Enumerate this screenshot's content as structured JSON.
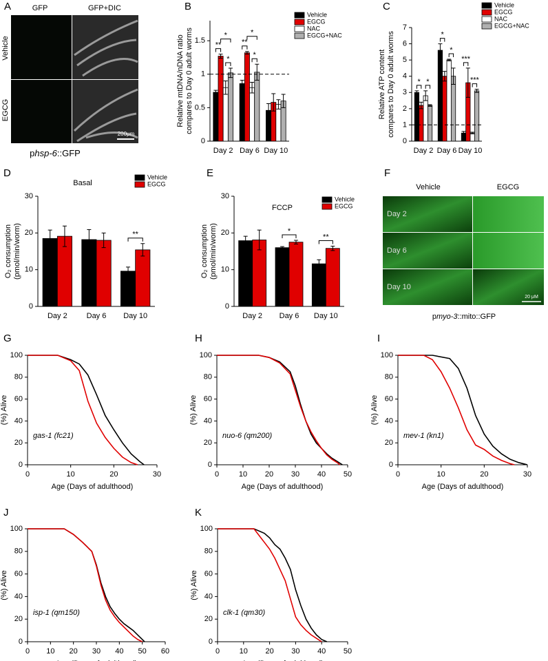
{
  "images": [
    {
      "panel": "A",
      "columns": [
        "GFP",
        "GFP+DIC"
      ],
      "rows": [
        "Vehicle",
        "EGCG"
      ],
      "scale_bar": "200μm",
      "caption": [
        "p",
        "hsp-6",
        "::GFP"
      ]
    },
    {
      "panel": "F",
      "columns": [
        "Vehicle",
        "EGCG"
      ],
      "rows": [
        "Day 2",
        "Day 6",
        "Day 10"
      ],
      "scale_bar": "20 μM",
      "caption": [
        "p",
        "myo-3",
        "::mito::GFP"
      ]
    }
  ],
  "chart_data": [
    {
      "type": "bar",
      "panel": "B",
      "ylabel": [
        "Relative mtDNA/nDNA ratio",
        "compares to Day 0 adult worms"
      ],
      "categories": [
        "Day 2",
        "Day 6",
        "Day 10"
      ],
      "ylim": [
        0,
        1.8
      ],
      "yticks": [
        0,
        0.5,
        1,
        1.5
      ],
      "refline": 1,
      "series": [
        {
          "name": "Vehicle",
          "color": "#000000",
          "values": [
            0.73,
            0.86,
            0.46
          ],
          "errors": [
            0.03,
            0.05,
            0.1
          ]
        },
        {
          "name": "EGCG",
          "color": "#e00000",
          "values": [
            1.27,
            1.32,
            0.58
          ],
          "errors": [
            0.03,
            0.02,
            0.13
          ]
        },
        {
          "name": "NAC",
          "color": "#ffffff",
          "values": [
            0.8,
            0.8,
            0.55
          ],
          "errors": [
            0.1,
            0.08,
            0.07
          ]
        },
        {
          "name": "EGCG+NAC",
          "color": "#b0b0b0",
          "values": [
            1.02,
            1.03,
            0.6
          ],
          "errors": [
            0.07,
            0.12,
            0.1
          ]
        }
      ],
      "annotations": [
        "**",
        "*",
        "*",
        "**",
        "*",
        "*"
      ]
    },
    {
      "type": "bar",
      "panel": "C",
      "ylabel": [
        "Relative ATP content",
        "compares to Day 0 adult worms"
      ],
      "categories": [
        "Day 2",
        "Day 6",
        "Day 10"
      ],
      "ylim": [
        0,
        7
      ],
      "yticks": [
        0,
        1,
        2,
        3,
        4,
        5,
        6,
        7
      ],
      "refline": 1,
      "series": [
        {
          "name": "Vehicle",
          "color": "#000000",
          "values": [
            3.0,
            5.6,
            0.5
          ],
          "errors": [
            0.1,
            0.4,
            0.1
          ]
        },
        {
          "name": "EGCG",
          "color": "#e00000",
          "values": [
            2.2,
            4.0,
            3.6
          ],
          "errors": [
            0.2,
            0.3,
            0.9
          ]
        },
        {
          "name": "NAC",
          "color": "#ffffff",
          "values": [
            2.8,
            5.0,
            0.5
          ],
          "errors": [
            0.3,
            0.05,
            0.05
          ]
        },
        {
          "name": "EGCG+NAC",
          "color": "#b0b0b0",
          "values": [
            2.2,
            4.0,
            3.1
          ],
          "errors": [
            0.05,
            0.5,
            0.1
          ]
        }
      ],
      "annotations": [
        "*",
        "*",
        "*",
        "*",
        "***",
        "***"
      ]
    },
    {
      "type": "bar",
      "panel": "D",
      "title": "Basal",
      "ylabel": [
        "O₂ consumption",
        "(pmol/min/worm)"
      ],
      "categories": [
        "Day 2",
        "Day 6",
        "Day 10"
      ],
      "ylim": [
        0,
        30
      ],
      "yticks": [
        0,
        10,
        20,
        30
      ],
      "series": [
        {
          "name": "Vehicle",
          "color": "#000000",
          "values": [
            18.5,
            18.2,
            9.6
          ],
          "errors": [
            2.3,
            2.7,
            1.1
          ]
        },
        {
          "name": "EGCG",
          "color": "#e00000",
          "values": [
            19.1,
            18.0,
            15.4
          ],
          "errors": [
            2.8,
            2.0,
            1.7
          ]
        }
      ],
      "annotations": [
        "**"
      ]
    },
    {
      "type": "bar",
      "panel": "E",
      "title": "FCCP",
      "ylabel": [
        "O₂ consumption",
        "(pmol/min/worm)"
      ],
      "categories": [
        "Day 2",
        "Day 6",
        "Day 10"
      ],
      "ylim": [
        0,
        30
      ],
      "yticks": [
        0,
        10,
        20,
        30
      ],
      "series": [
        {
          "name": "Vehicle",
          "color": "#000000",
          "values": [
            17.9,
            16.0,
            11.6
          ],
          "errors": [
            1.2,
            0.3,
            1.1
          ]
        },
        {
          "name": "EGCG",
          "color": "#e00000",
          "values": [
            18.1,
            17.5,
            15.8
          ],
          "errors": [
            2.7,
            0.5,
            0.6
          ]
        }
      ],
      "annotations": [
        "*",
        "**"
      ]
    },
    {
      "type": "line",
      "panel": "G",
      "label": "gas-1 (fc21)",
      "xlabel": "Age (Days of adulthood)",
      "ylabel": [
        "(%) Alive"
      ],
      "xlim": [
        0,
        30
      ],
      "xticks": [
        0,
        10,
        20,
        30
      ],
      "ylim": [
        0,
        100
      ],
      "yticks": [
        0,
        20,
        40,
        60,
        80,
        100
      ],
      "series": [
        {
          "color": "#000000",
          "x": [
            0,
            7,
            10,
            12,
            14,
            16,
            18,
            20,
            22,
            24,
            26,
            27
          ],
          "values": [
            100,
            100,
            96,
            92,
            82,
            64,
            45,
            32,
            20,
            10,
            3,
            0
          ]
        },
        {
          "color": "#e00000",
          "x": [
            0,
            7,
            10,
            12,
            13,
            14,
            16,
            18,
            20,
            22,
            24,
            25.5
          ],
          "values": [
            100,
            100,
            95,
            86,
            72,
            58,
            38,
            25,
            15,
            7,
            2,
            0
          ]
        }
      ]
    },
    {
      "type": "line",
      "panel": "H",
      "label": "nuo-6 (qm200)",
      "xlabel": "Age (Days of adulthood)",
      "ylabel": [
        "(%) Alive"
      ],
      "xlim": [
        0,
        50
      ],
      "xticks": [
        0,
        10,
        20,
        30,
        40,
        50
      ],
      "ylim": [
        0,
        100
      ],
      "yticks": [
        0,
        20,
        40,
        60,
        80,
        100
      ],
      "series": [
        {
          "color": "#000000",
          "x": [
            0,
            16,
            20,
            24,
            28,
            30,
            32,
            34,
            36,
            38,
            40,
            42,
            44,
            46,
            48
          ],
          "values": [
            100,
            100,
            98,
            94,
            85,
            72,
            55,
            40,
            28,
            20,
            15,
            10,
            6,
            3,
            0
          ]
        },
        {
          "color": "#e00000",
          "x": [
            0,
            16,
            20,
            24,
            28,
            30,
            32,
            34,
            36,
            38,
            40,
            42,
            44,
            46,
            47
          ],
          "values": [
            100,
            100,
            98,
            93,
            83,
            68,
            53,
            40,
            30,
            22,
            15,
            9,
            5,
            2,
            0
          ]
        }
      ]
    },
    {
      "type": "line",
      "panel": "I",
      "label": "mev-1 (kn1)",
      "xlabel": "Age (Days of adulthood)",
      "ylabel": [
        "(%) Alive"
      ],
      "xlim": [
        0,
        30
      ],
      "xticks": [
        0,
        10,
        20,
        30
      ],
      "ylim": [
        0,
        100
      ],
      "yticks": [
        0,
        20,
        40,
        60,
        80,
        100
      ],
      "series": [
        {
          "color": "#000000",
          "x": [
            0,
            8,
            12,
            14,
            16,
            18,
            20,
            22,
            24,
            26,
            28,
            30
          ],
          "values": [
            100,
            100,
            97,
            88,
            70,
            45,
            28,
            17,
            10,
            5,
            2,
            0
          ]
        },
        {
          "color": "#e00000",
          "x": [
            0,
            6,
            8,
            10,
            12,
            14,
            16,
            18,
            20,
            22,
            24,
            26,
            27
          ],
          "values": [
            100,
            100,
            96,
            85,
            70,
            52,
            32,
            18,
            14,
            8,
            4,
            1,
            0
          ]
        }
      ]
    },
    {
      "type": "line",
      "panel": "J",
      "label": "isp-1 (qm150)",
      "xlabel": "Age (Days of adulthood)",
      "ylabel": [
        "(%) Alive"
      ],
      "xlim": [
        0,
        60
      ],
      "xticks": [
        0,
        10,
        20,
        30,
        40,
        50,
        60
      ],
      "ylim": [
        0,
        100
      ],
      "yticks": [
        0,
        20,
        40,
        60,
        80,
        100
      ],
      "series": [
        {
          "color": "#000000",
          "x": [
            0,
            16,
            20,
            24,
            28,
            30,
            32,
            34,
            36,
            38,
            40,
            42,
            44,
            46,
            48,
            50,
            51
          ],
          "values": [
            100,
            100,
            95,
            88,
            80,
            68,
            52,
            40,
            31,
            25,
            20,
            16,
            13,
            10,
            6,
            2,
            0
          ]
        },
        {
          "color": "#e00000",
          "x": [
            0,
            16,
            20,
            24,
            28,
            30,
            32,
            34,
            36,
            38,
            40,
            42,
            44,
            46,
            48,
            50
          ],
          "values": [
            100,
            100,
            95,
            88,
            80,
            67,
            50,
            37,
            28,
            22,
            17,
            13,
            9,
            5,
            2,
            0
          ]
        }
      ]
    },
    {
      "type": "line",
      "panel": "K",
      "label": "clk-1 (qm30)",
      "xlabel": "Age (Days of adulthood)",
      "ylabel": [
        "(%) Alive"
      ],
      "xlim": [
        0,
        50
      ],
      "xticks": [
        0,
        10,
        20,
        30,
        40,
        50
      ],
      "ylim": [
        0,
        100
      ],
      "yticks": [
        0,
        20,
        40,
        60,
        80,
        100
      ],
      "series": [
        {
          "color": "#000000",
          "x": [
            0,
            14,
            18,
            20,
            22,
            24,
            26,
            28,
            30,
            32,
            34,
            36,
            38,
            40,
            42
          ],
          "values": [
            100,
            100,
            96,
            92,
            86,
            82,
            74,
            64,
            46,
            32,
            20,
            12,
            6,
            2,
            0
          ]
        },
        {
          "color": "#e00000",
          "x": [
            0,
            14,
            16,
            18,
            20,
            22,
            24,
            26,
            28,
            30,
            32,
            34,
            36,
            38,
            40
          ],
          "values": [
            100,
            100,
            94,
            88,
            82,
            74,
            64,
            54,
            38,
            22,
            15,
            10,
            6,
            3,
            0
          ]
        }
      ]
    }
  ]
}
